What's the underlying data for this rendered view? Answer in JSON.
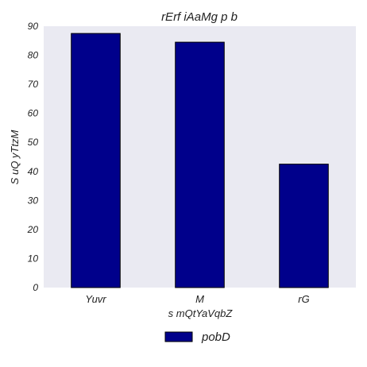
{
  "chart_data": {
    "type": "bar",
    "title": "rErf iAaMg p b",
    "xlabel": "s mQtYaVqbZ",
    "ylabel": "S uQ yTtzM",
    "categories": [
      "Yuvr",
      "M",
      "rG"
    ],
    "series": [
      {
        "name": "pobD",
        "values": [
          87.5,
          84.5,
          42.5
        ],
        "color": "#00008b"
      }
    ],
    "ylim": [
      0,
      90
    ],
    "yticks": [
      "0",
      "10",
      "20",
      "30",
      "40",
      "50",
      "60",
      "70",
      "80",
      "90"
    ],
    "grid": false,
    "legend_position": "bottom-center",
    "plot_background": "#eaeaf2"
  }
}
